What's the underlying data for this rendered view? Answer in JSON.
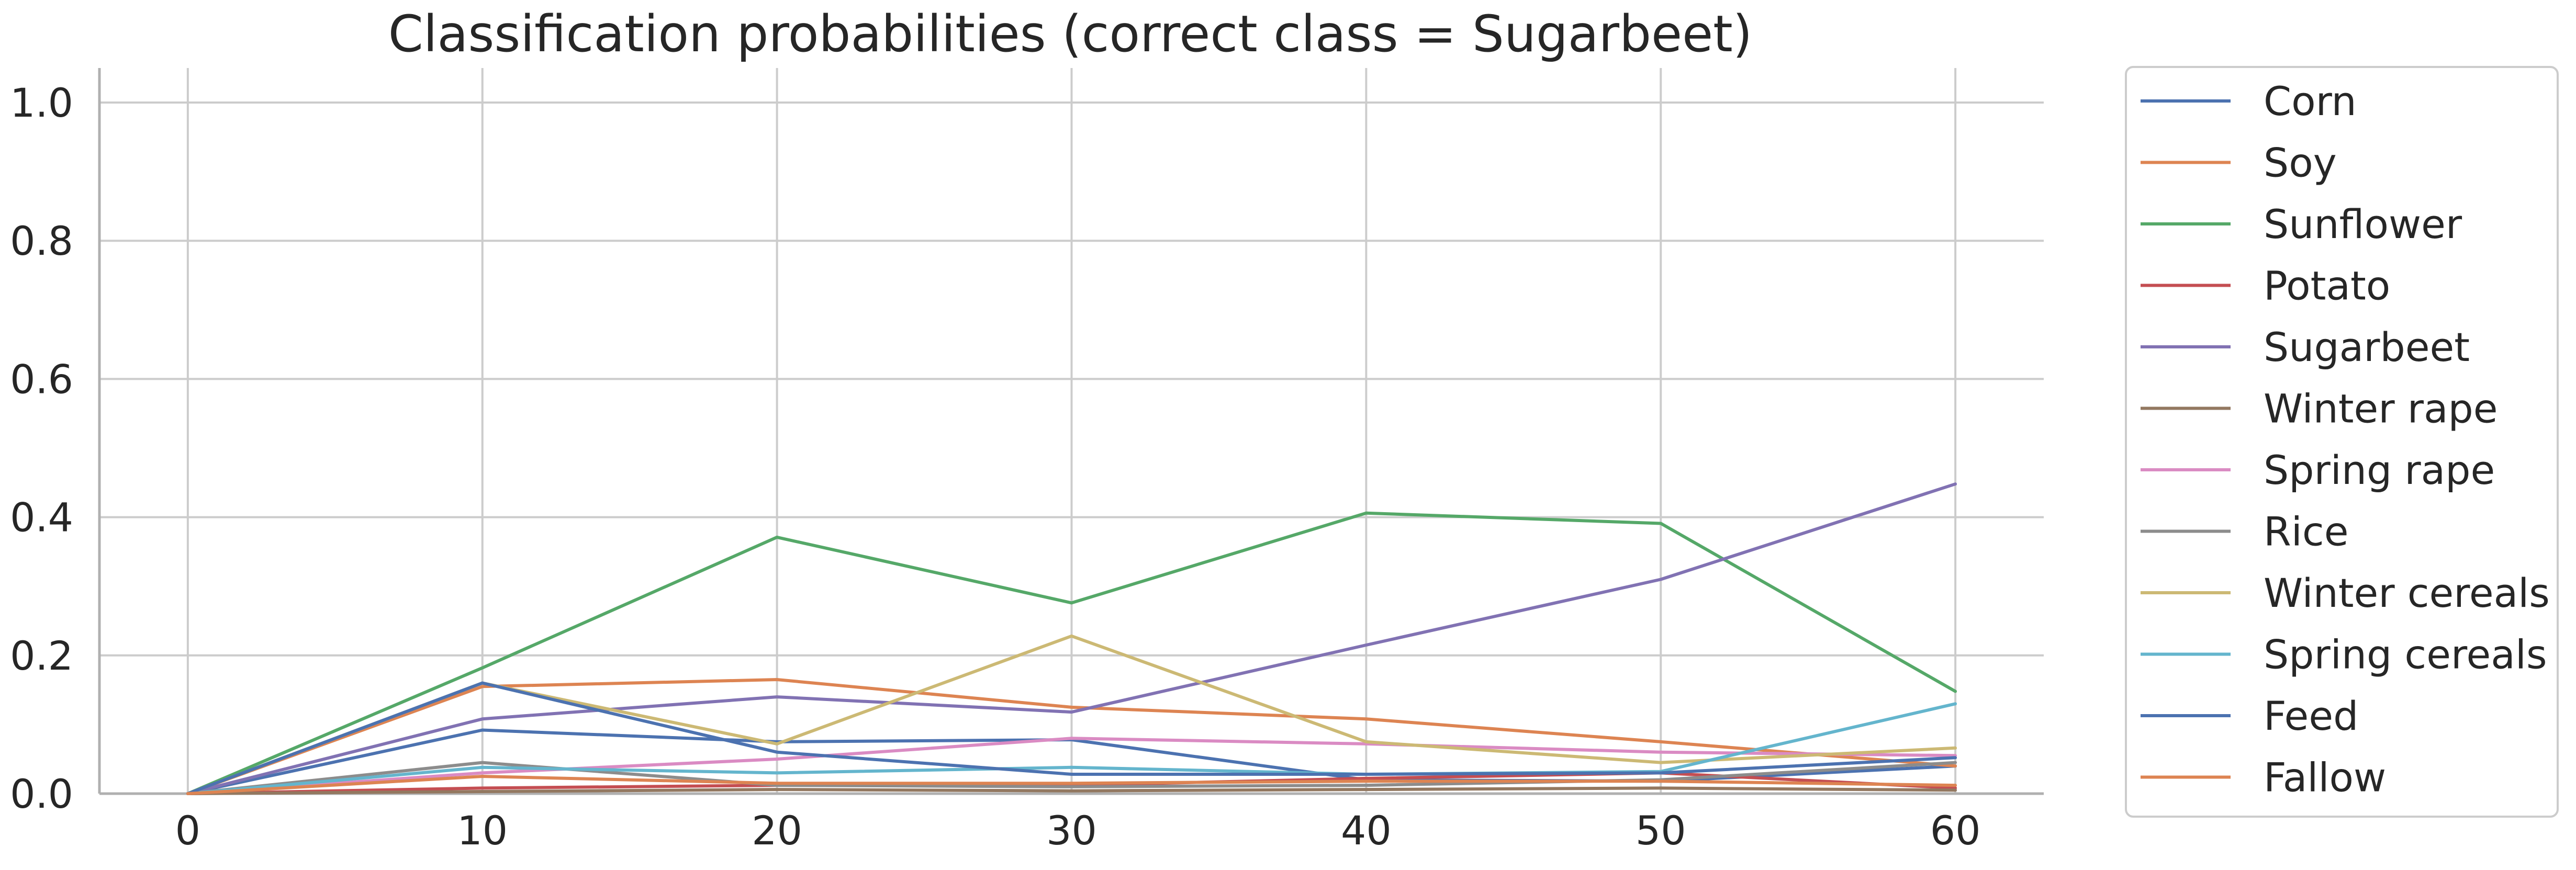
{
  "chart_data": {
    "type": "line",
    "title": "Classification probabilities (correct class = Sugarbeet)",
    "xlabel": "",
    "ylabel": "",
    "x": [
      0,
      10,
      20,
      30,
      40,
      50,
      60
    ],
    "xlim": [
      -3,
      63
    ],
    "ylim": [
      0,
      1.05
    ],
    "xticks": [
      0,
      10,
      20,
      30,
      40,
      50,
      60
    ],
    "yticks": [
      0.0,
      0.2,
      0.4,
      0.6,
      0.8,
      1.0
    ],
    "xtick_labels": [
      "0",
      "10",
      "20",
      "30",
      "40",
      "50",
      "60"
    ],
    "ytick_labels": [
      "0.0",
      "0.2",
      "0.4",
      "0.6",
      "0.8",
      "1.0"
    ],
    "grid": true,
    "legend_position": "outside-right",
    "series": [
      {
        "name": "Corn",
        "color": "#4c72b0",
        "values": [
          0.0,
          0.092,
          0.075,
          0.078,
          0.02,
          0.018,
          0.04
        ]
      },
      {
        "name": "Soy",
        "color": "#dd8452",
        "values": [
          0.0,
          0.155,
          0.165,
          0.125,
          0.108,
          0.075,
          0.04
        ]
      },
      {
        "name": "Sunflower",
        "color": "#55a868",
        "values": [
          0.0,
          0.182,
          0.371,
          0.276,
          0.406,
          0.391,
          0.148
        ]
      },
      {
        "name": "Potato",
        "color": "#c44e52",
        "values": [
          0.0,
          0.008,
          0.012,
          0.012,
          0.022,
          0.03,
          0.008
        ]
      },
      {
        "name": "Sugarbeet",
        "color": "#8172b3",
        "values": [
          0.0,
          0.108,
          0.14,
          0.118,
          0.215,
          0.31,
          0.448
        ]
      },
      {
        "name": "Winter rape",
        "color": "#937860",
        "values": [
          0.0,
          0.003,
          0.006,
          0.004,
          0.006,
          0.008,
          0.005
        ]
      },
      {
        "name": "Spring rape",
        "color": "#da8bc3",
        "values": [
          0.0,
          0.03,
          0.05,
          0.08,
          0.072,
          0.06,
          0.055
        ]
      },
      {
        "name": "Rice",
        "color": "#8c8c8c",
        "values": [
          0.0,
          0.045,
          0.012,
          0.01,
          0.012,
          0.02,
          0.045
        ]
      },
      {
        "name": "Winter cereals",
        "color": "#ccb974",
        "values": [
          0.0,
          0.16,
          0.072,
          0.228,
          0.075,
          0.045,
          0.066
        ]
      },
      {
        "name": "Spring cereals",
        "color": "#64b5cd",
        "values": [
          0.0,
          0.038,
          0.03,
          0.038,
          0.028,
          0.032,
          0.13
        ]
      },
      {
        "name": "Feed",
        "color": "#4c72b0",
        "values": [
          0.0,
          0.16,
          0.06,
          0.028,
          0.028,
          0.03,
          0.052
        ]
      },
      {
        "name": "Fallow",
        "color": "#dd8452",
        "values": [
          0.0,
          0.025,
          0.015,
          0.015,
          0.018,
          0.018,
          0.012
        ]
      }
    ]
  }
}
